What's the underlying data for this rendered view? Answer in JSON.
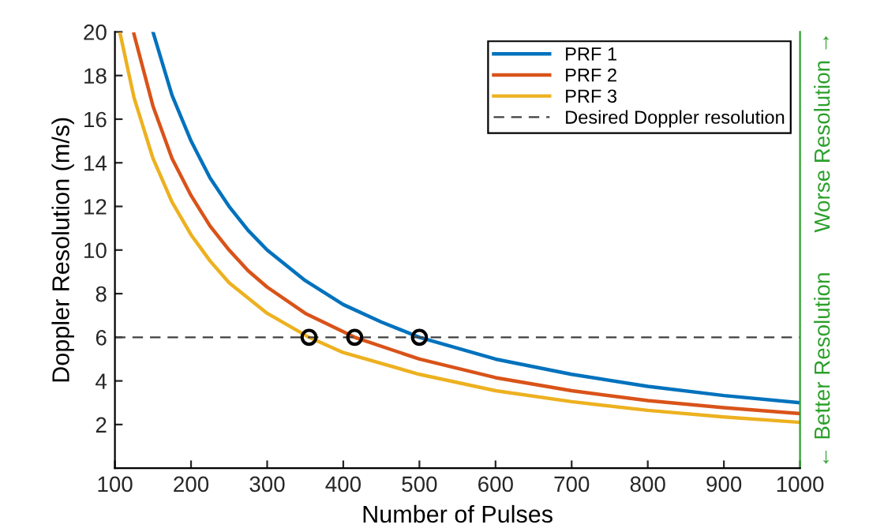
{
  "chart_data": {
    "type": "line",
    "xlabel": "Number of Pulses",
    "ylabel": "Doppler Resolution (m/s)",
    "xlim": [
      100,
      1000
    ],
    "ylim": [
      0,
      20
    ],
    "xticks": [
      100,
      200,
      300,
      400,
      500,
      600,
      700,
      800,
      900,
      1000
    ],
    "yticks": [
      2,
      4,
      6,
      8,
      10,
      12,
      14,
      16,
      18,
      20
    ],
    "legend": "top right",
    "grid": false,
    "series": [
      {
        "name": "PRF 1",
        "color": "#0072bd",
        "x": [
          150,
          175,
          200,
          225,
          250,
          275,
          300,
          350,
          400,
          450,
          500,
          600,
          700,
          800,
          900,
          1000
        ],
        "values": [
          20,
          17.1,
          15,
          13.3,
          12,
          10.9,
          10,
          8.6,
          7.5,
          6.7,
          6,
          5,
          4.3,
          3.75,
          3.33,
          3.0
        ]
      },
      {
        "name": "PRF 2",
        "color": "#d95319",
        "x": [
          125,
          150,
          175,
          200,
          225,
          250,
          275,
          300,
          350,
          415,
          500,
          600,
          700,
          800,
          900,
          1000
        ],
        "values": [
          19.9,
          16.6,
          14.2,
          12.5,
          11.1,
          10,
          9.05,
          8.3,
          7.1,
          6,
          5,
          4.15,
          3.55,
          3.1,
          2.77,
          2.5
        ]
      },
      {
        "name": "PRF 3",
        "color": "#edb120",
        "x": [
          107,
          125,
          150,
          175,
          200,
          225,
          250,
          300,
          355,
          400,
          500,
          600,
          700,
          800,
          900,
          1000
        ],
        "values": [
          19.9,
          17,
          14.2,
          12.2,
          10.7,
          9.5,
          8.5,
          7.1,
          6,
          5.3,
          4.3,
          3.55,
          3.05,
          2.65,
          2.35,
          2.1
        ]
      },
      {
        "type": "scatter",
        "marker": "circle",
        "color": "#000000",
        "x": [
          355,
          415,
          500
        ],
        "values": [
          6,
          6,
          6
        ]
      }
    ],
    "ref_lines": [
      {
        "axis": "y",
        "value": 6,
        "label": "Desired Doppler resolution",
        "color": "#404040",
        "line_style": "dashed"
      }
    ],
    "annotations": [
      "← Better Resolution",
      "Worse Resolution →"
    ]
  }
}
